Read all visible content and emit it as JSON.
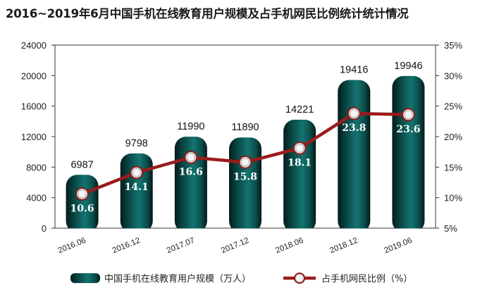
{
  "chart_data": {
    "type": "bar+line",
    "title": "2016~2019年6月中国手机在线教育用户规模及占手机网民比例统计统计情况",
    "categories": [
      "2016.06",
      "2016.12",
      "2017.07",
      "2017.12",
      "2018.06",
      "2018.12",
      "2019.06"
    ],
    "series": [
      {
        "name": "中国手机在线教育用户规模（万人）",
        "type": "bar",
        "axis": "left",
        "values": [
          6987,
          9798,
          11990,
          11890,
          14221,
          19416,
          19946
        ],
        "color": "#0e5e5a"
      },
      {
        "name": "占手机网民比例（%）",
        "type": "line",
        "axis": "right",
        "values": [
          10.6,
          14.1,
          16.6,
          15.8,
          18.1,
          23.8,
          23.6
        ],
        "color": "#9b1b1b"
      }
    ],
    "y_left": {
      "lim": [
        0,
        24000
      ],
      "ticks": [
        "0",
        "4000",
        "8000",
        "12000",
        "16000",
        "20000",
        "24000"
      ]
    },
    "y_right": {
      "lim": [
        5,
        35
      ],
      "ticks": [
        "5%",
        "10%",
        "15%",
        "20%",
        "25%",
        "30%",
        "35%"
      ]
    },
    "grid": false,
    "legend_position": "bottom"
  }
}
